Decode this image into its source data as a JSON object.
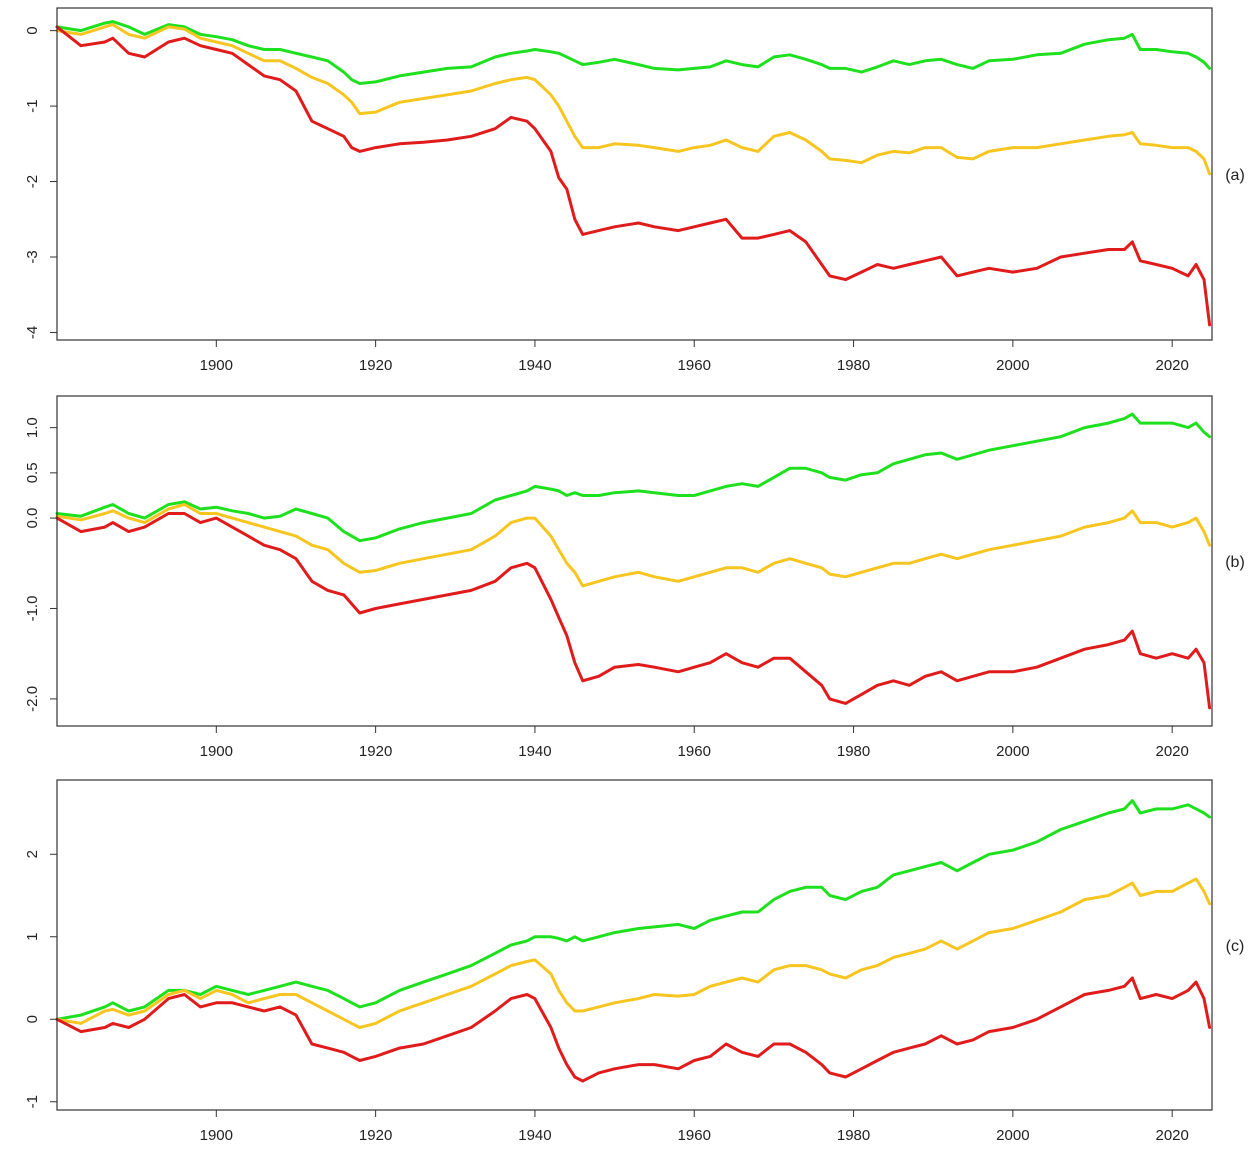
{
  "chart_data": [
    {
      "type": "line",
      "panel_label": "(a)",
      "xlim": [
        1880,
        2025
      ],
      "ylim": [
        -4.1,
        0.3
      ],
      "x_ticks": [
        "1900",
        "1920",
        "1940",
        "1960",
        "1980",
        "2000",
        "2020"
      ],
      "x_tick_values": [
        1900,
        1920,
        1940,
        1960,
        1980,
        2000,
        2020
      ],
      "y_ticks": [
        "0",
        "-1",
        "-2",
        "-3",
        "-4"
      ],
      "y_tick_values": [
        0,
        -1,
        -2,
        -3,
        -4
      ],
      "x": [
        1880,
        1883,
        1886,
        1887,
        1889,
        1891,
        1894,
        1896,
        1898,
        1900,
        1902,
        1904,
        1906,
        1908,
        1910,
        1912,
        1914,
        1916,
        1917,
        1918,
        1920,
        1923,
        1926,
        1929,
        1932,
        1935,
        1937,
        1939,
        1940,
        1942,
        1943,
        1944,
        1945,
        1946,
        1948,
        1950,
        1953,
        1955,
        1958,
        1960,
        1962,
        1964,
        1966,
        1968,
        1970,
        1972,
        1974,
        1976,
        1977,
        1979,
        1981,
        1983,
        1985,
        1987,
        1989,
        1991,
        1993,
        1995,
        1997,
        2000,
        2003,
        2006,
        2009,
        2012,
        2014,
        2015,
        2016,
        2018,
        2020,
        2022,
        2023,
        2024,
        2024.7
      ],
      "series": [
        {
          "color": "#1ee01e",
          "values": [
            0.05,
            0.0,
            0.1,
            0.12,
            0.05,
            -0.05,
            0.08,
            0.05,
            -0.05,
            -0.08,
            -0.12,
            -0.2,
            -0.25,
            -0.25,
            -0.3,
            -0.35,
            -0.4,
            -0.55,
            -0.65,
            -0.7,
            -0.68,
            -0.6,
            -0.55,
            -0.5,
            -0.48,
            -0.35,
            -0.3,
            -0.27,
            -0.25,
            -0.28,
            -0.3,
            -0.35,
            -0.4,
            -0.45,
            -0.42,
            -0.38,
            -0.45,
            -0.5,
            -0.52,
            -0.5,
            -0.48,
            -0.4,
            -0.45,
            -0.48,
            -0.35,
            -0.32,
            -0.38,
            -0.45,
            -0.5,
            -0.5,
            -0.55,
            -0.48,
            -0.4,
            -0.45,
            -0.4,
            -0.38,
            -0.45,
            -0.5,
            -0.4,
            -0.38,
            -0.32,
            -0.3,
            -0.18,
            -0.12,
            -0.1,
            -0.05,
            -0.25,
            -0.25,
            -0.28,
            -0.3,
            -0.35,
            -0.42,
            -0.5
          ]
        },
        {
          "color": "#f7c520",
          "values": [
            0.0,
            -0.05,
            0.05,
            0.08,
            -0.05,
            -0.1,
            0.05,
            0.02,
            -0.1,
            -0.15,
            -0.2,
            -0.3,
            -0.4,
            -0.4,
            -0.5,
            -0.62,
            -0.7,
            -0.85,
            -0.95,
            -1.1,
            -1.08,
            -0.95,
            -0.9,
            -0.85,
            -0.8,
            -0.7,
            -0.65,
            -0.62,
            -0.65,
            -0.85,
            -1.0,
            -1.2,
            -1.4,
            -1.55,
            -1.55,
            -1.5,
            -1.52,
            -1.55,
            -1.6,
            -1.55,
            -1.52,
            -1.45,
            -1.55,
            -1.6,
            -1.4,
            -1.35,
            -1.45,
            -1.6,
            -1.7,
            -1.72,
            -1.75,
            -1.65,
            -1.6,
            -1.62,
            -1.55,
            -1.55,
            -1.68,
            -1.7,
            -1.6,
            -1.55,
            -1.55,
            -1.5,
            -1.45,
            -1.4,
            -1.38,
            -1.35,
            -1.5,
            -1.52,
            -1.55,
            -1.55,
            -1.6,
            -1.7,
            -1.9
          ]
        },
        {
          "color": "#e01b1b",
          "values": [
            0.05,
            -0.2,
            -0.15,
            -0.1,
            -0.3,
            -0.35,
            -0.15,
            -0.1,
            -0.2,
            -0.25,
            -0.3,
            -0.45,
            -0.6,
            -0.65,
            -0.8,
            -1.2,
            -1.3,
            -1.4,
            -1.55,
            -1.6,
            -1.55,
            -1.5,
            -1.48,
            -1.45,
            -1.4,
            -1.3,
            -1.15,
            -1.2,
            -1.3,
            -1.6,
            -1.95,
            -2.1,
            -2.5,
            -2.7,
            -2.65,
            -2.6,
            -2.55,
            -2.6,
            -2.65,
            -2.6,
            -2.55,
            -2.5,
            -2.75,
            -2.75,
            -2.7,
            -2.65,
            -2.8,
            -3.1,
            -3.25,
            -3.3,
            -3.2,
            -3.1,
            -3.15,
            -3.1,
            -3.05,
            -3.0,
            -3.25,
            -3.2,
            -3.15,
            -3.2,
            -3.15,
            -3.0,
            -2.95,
            -2.9,
            -2.9,
            -2.8,
            -3.05,
            -3.1,
            -3.15,
            -3.25,
            -3.1,
            -3.3,
            -3.9
          ]
        }
      ]
    },
    {
      "type": "line",
      "panel_label": "(b)",
      "xlim": [
        1880,
        2025
      ],
      "ylim": [
        -2.3,
        1.35
      ],
      "x_ticks": [
        "1900",
        "1920",
        "1940",
        "1960",
        "1980",
        "2000",
        "2020"
      ],
      "x_tick_values": [
        1900,
        1920,
        1940,
        1960,
        1980,
        2000,
        2020
      ],
      "y_ticks": [
        "1.0",
        "0.5",
        "0.0",
        "-1.0",
        "-2.0"
      ],
      "y_tick_values": [
        1.0,
        0.5,
        0.0,
        -1.0,
        -2.0
      ],
      "x": [
        1880,
        1883,
        1886,
        1887,
        1889,
        1891,
        1894,
        1896,
        1898,
        1900,
        1902,
        1904,
        1906,
        1908,
        1910,
        1912,
        1914,
        1916,
        1917,
        1918,
        1920,
        1923,
        1926,
        1929,
        1932,
        1935,
        1937,
        1939,
        1940,
        1942,
        1943,
        1944,
        1945,
        1946,
        1948,
        1950,
        1953,
        1955,
        1958,
        1960,
        1962,
        1964,
        1966,
        1968,
        1970,
        1972,
        1974,
        1976,
        1977,
        1979,
        1981,
        1983,
        1985,
        1987,
        1989,
        1991,
        1993,
        1995,
        1997,
        2000,
        2003,
        2006,
        2009,
        2012,
        2014,
        2015,
        2016,
        2018,
        2020,
        2022,
        2023,
        2024,
        2024.7
      ],
      "series": [
        {
          "color": "#1ee01e",
          "values": [
            0.05,
            0.02,
            0.12,
            0.15,
            0.05,
            0.0,
            0.15,
            0.18,
            0.1,
            0.12,
            0.08,
            0.05,
            0.0,
            0.02,
            0.1,
            0.05,
            0.0,
            -0.15,
            -0.2,
            -0.25,
            -0.22,
            -0.12,
            -0.05,
            0.0,
            0.05,
            0.2,
            0.25,
            0.3,
            0.35,
            0.32,
            0.3,
            0.25,
            0.28,
            0.25,
            0.25,
            0.28,
            0.3,
            0.28,
            0.25,
            0.25,
            0.3,
            0.35,
            0.38,
            0.35,
            0.45,
            0.55,
            0.55,
            0.5,
            0.45,
            0.42,
            0.48,
            0.5,
            0.6,
            0.65,
            0.7,
            0.72,
            0.65,
            0.7,
            0.75,
            0.8,
            0.85,
            0.9,
            1.0,
            1.05,
            1.1,
            1.15,
            1.05,
            1.05,
            1.05,
            1.0,
            1.05,
            0.95,
            0.9
          ]
        },
        {
          "color": "#f7c520",
          "values": [
            0.02,
            -0.02,
            0.05,
            0.08,
            0.0,
            -0.05,
            0.1,
            0.15,
            0.05,
            0.05,
            0.0,
            -0.05,
            -0.1,
            -0.15,
            -0.2,
            -0.3,
            -0.35,
            -0.5,
            -0.55,
            -0.6,
            -0.58,
            -0.5,
            -0.45,
            -0.4,
            -0.35,
            -0.2,
            -0.05,
            0.0,
            0.0,
            -0.2,
            -0.35,
            -0.5,
            -0.6,
            -0.75,
            -0.7,
            -0.65,
            -0.6,
            -0.65,
            -0.7,
            -0.65,
            -0.6,
            -0.55,
            -0.55,
            -0.6,
            -0.5,
            -0.45,
            -0.5,
            -0.55,
            -0.62,
            -0.65,
            -0.6,
            -0.55,
            -0.5,
            -0.5,
            -0.45,
            -0.4,
            -0.45,
            -0.4,
            -0.35,
            -0.3,
            -0.25,
            -0.2,
            -0.1,
            -0.05,
            0.0,
            0.08,
            -0.05,
            -0.05,
            -0.1,
            -0.05,
            0.0,
            -0.15,
            -0.3
          ]
        },
        {
          "color": "#e01b1b",
          "values": [
            0.0,
            -0.15,
            -0.1,
            -0.05,
            -0.15,
            -0.1,
            0.05,
            0.05,
            -0.05,
            0.0,
            -0.1,
            -0.2,
            -0.3,
            -0.35,
            -0.45,
            -0.7,
            -0.8,
            -0.85,
            -0.95,
            -1.05,
            -1.0,
            -0.95,
            -0.9,
            -0.85,
            -0.8,
            -0.7,
            -0.55,
            -0.5,
            -0.55,
            -0.9,
            -1.1,
            -1.3,
            -1.6,
            -1.8,
            -1.75,
            -1.65,
            -1.62,
            -1.65,
            -1.7,
            -1.65,
            -1.6,
            -1.5,
            -1.6,
            -1.65,
            -1.55,
            -1.55,
            -1.7,
            -1.85,
            -2.0,
            -2.05,
            -1.95,
            -1.85,
            -1.8,
            -1.85,
            -1.75,
            -1.7,
            -1.8,
            -1.75,
            -1.7,
            -1.7,
            -1.65,
            -1.55,
            -1.45,
            -1.4,
            -1.35,
            -1.25,
            -1.5,
            -1.55,
            -1.5,
            -1.55,
            -1.45,
            -1.6,
            -2.1
          ]
        }
      ]
    },
    {
      "type": "line",
      "panel_label": "(c)",
      "xlim": [
        1880,
        2025
      ],
      "ylim": [
        -1.1,
        2.9
      ],
      "x_ticks": [
        "1900",
        "1920",
        "1940",
        "1960",
        "1980",
        "2000",
        "2020"
      ],
      "x_tick_values": [
        1900,
        1920,
        1940,
        1960,
        1980,
        2000,
        2020
      ],
      "y_ticks": [
        "2",
        "1",
        "0",
        "-1"
      ],
      "y_tick_values": [
        2,
        1,
        0,
        -1
      ],
      "x": [
        1880,
        1883,
        1886,
        1887,
        1889,
        1891,
        1894,
        1896,
        1898,
        1900,
        1902,
        1904,
        1906,
        1908,
        1910,
        1912,
        1914,
        1916,
        1917,
        1918,
        1920,
        1923,
        1926,
        1929,
        1932,
        1935,
        1937,
        1939,
        1940,
        1942,
        1943,
        1944,
        1945,
        1946,
        1948,
        1950,
        1953,
        1955,
        1958,
        1960,
        1962,
        1964,
        1966,
        1968,
        1970,
        1972,
        1974,
        1976,
        1977,
        1979,
        1981,
        1983,
        1985,
        1987,
        1989,
        1991,
        1993,
        1995,
        1997,
        2000,
        2003,
        2006,
        2009,
        2012,
        2014,
        2015,
        2016,
        2018,
        2020,
        2022,
        2023,
        2024,
        2024.7
      ],
      "series": [
        {
          "color": "#1ee01e",
          "values": [
            0.0,
            0.05,
            0.15,
            0.2,
            0.1,
            0.15,
            0.35,
            0.35,
            0.3,
            0.4,
            0.35,
            0.3,
            0.35,
            0.4,
            0.45,
            0.4,
            0.35,
            0.25,
            0.2,
            0.15,
            0.2,
            0.35,
            0.45,
            0.55,
            0.65,
            0.8,
            0.9,
            0.95,
            1.0,
            1.0,
            0.98,
            0.95,
            1.0,
            0.95,
            1.0,
            1.05,
            1.1,
            1.12,
            1.15,
            1.1,
            1.2,
            1.25,
            1.3,
            1.3,
            1.45,
            1.55,
            1.6,
            1.6,
            1.5,
            1.45,
            1.55,
            1.6,
            1.75,
            1.8,
            1.85,
            1.9,
            1.8,
            1.9,
            2.0,
            2.05,
            2.15,
            2.3,
            2.4,
            2.5,
            2.55,
            2.65,
            2.5,
            2.55,
            2.55,
            2.6,
            2.55,
            2.5,
            2.45
          ]
        },
        {
          "color": "#f7c520",
          "values": [
            0.0,
            -0.05,
            0.1,
            0.12,
            0.05,
            0.1,
            0.3,
            0.35,
            0.25,
            0.35,
            0.3,
            0.2,
            0.25,
            0.3,
            0.3,
            0.2,
            0.1,
            0.0,
            -0.05,
            -0.1,
            -0.05,
            0.1,
            0.2,
            0.3,
            0.4,
            0.55,
            0.65,
            0.7,
            0.72,
            0.55,
            0.35,
            0.2,
            0.1,
            0.1,
            0.15,
            0.2,
            0.25,
            0.3,
            0.28,
            0.3,
            0.4,
            0.45,
            0.5,
            0.45,
            0.6,
            0.65,
            0.65,
            0.6,
            0.55,
            0.5,
            0.6,
            0.65,
            0.75,
            0.8,
            0.85,
            0.95,
            0.85,
            0.95,
            1.05,
            1.1,
            1.2,
            1.3,
            1.45,
            1.5,
            1.6,
            1.65,
            1.5,
            1.55,
            1.55,
            1.65,
            1.7,
            1.55,
            1.4
          ]
        },
        {
          "color": "#e01b1b",
          "values": [
            0.0,
            -0.15,
            -0.1,
            -0.05,
            -0.1,
            0.0,
            0.25,
            0.3,
            0.15,
            0.2,
            0.2,
            0.15,
            0.1,
            0.15,
            0.05,
            -0.3,
            -0.35,
            -0.4,
            -0.45,
            -0.5,
            -0.45,
            -0.35,
            -0.3,
            -0.2,
            -0.1,
            0.1,
            0.25,
            0.3,
            0.25,
            -0.1,
            -0.35,
            -0.55,
            -0.7,
            -0.75,
            -0.65,
            -0.6,
            -0.55,
            -0.55,
            -0.6,
            -0.5,
            -0.45,
            -0.3,
            -0.4,
            -0.45,
            -0.3,
            -0.3,
            -0.4,
            -0.55,
            -0.65,
            -0.7,
            -0.6,
            -0.5,
            -0.4,
            -0.35,
            -0.3,
            -0.2,
            -0.3,
            -0.25,
            -0.15,
            -0.1,
            0.0,
            0.15,
            0.3,
            0.35,
            0.4,
            0.5,
            0.25,
            0.3,
            0.25,
            0.35,
            0.45,
            0.25,
            -0.1
          ]
        }
      ]
    }
  ]
}
